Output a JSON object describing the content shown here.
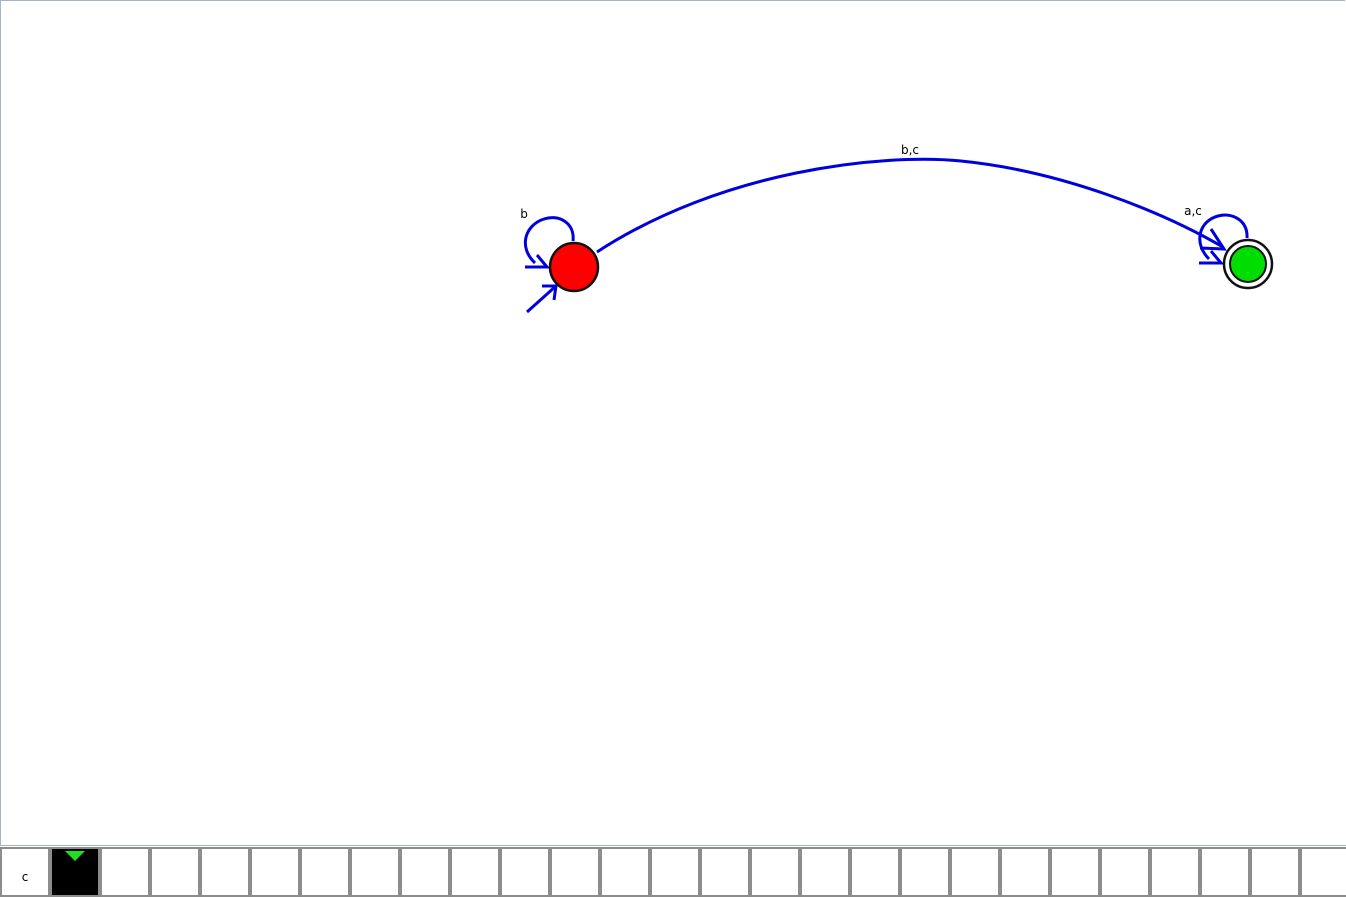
{
  "colors": {
    "edge": "#0000dd",
    "start_state_fill": "#ff0000",
    "final_state_fill": "#00dd00",
    "state_stroke": "#111111",
    "head_cell": "#000000",
    "head_marker": "#22dd22",
    "cell_border": "#8c8c8c"
  },
  "automaton": {
    "states": [
      {
        "id": "q0",
        "initial": true,
        "final": false,
        "color": "red"
      },
      {
        "id": "q1",
        "initial": false,
        "final": true,
        "color": "green"
      }
    ],
    "transitions": [
      {
        "from": "q0",
        "to": "q0",
        "label": "b"
      },
      {
        "from": "q0",
        "to": "q1",
        "label": "b,c"
      },
      {
        "from": "q1",
        "to": "q1",
        "label": "a,c"
      }
    ]
  },
  "tape": {
    "cells": [
      "c",
      "",
      "",
      "",
      "",
      "",
      "",
      "",
      "",
      "",
      "",
      "",
      "",
      "",
      "",
      "",
      "",
      "",
      "",
      "",
      "",
      "",
      "",
      "",
      "",
      "",
      "",
      ""
    ],
    "head_index": 1,
    "head_icon": "triangle-down-icon"
  }
}
